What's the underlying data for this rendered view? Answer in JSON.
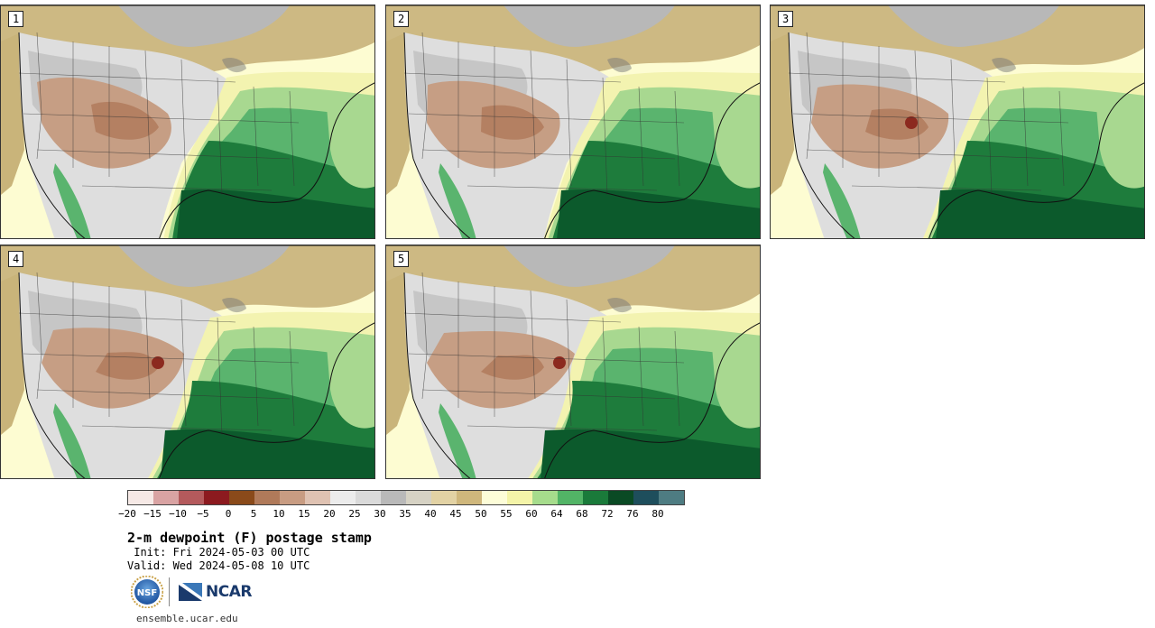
{
  "panels": [
    {
      "label": "1",
      "variant": 0
    },
    {
      "label": "2",
      "variant": 1
    },
    {
      "label": "3",
      "variant": 2
    },
    {
      "label": "4",
      "variant": 3
    },
    {
      "label": "5",
      "variant": 4
    }
  ],
  "colorbar": {
    "colors": [
      "#f6e9e6",
      "#d9a3a3",
      "#b45a5c",
      "#8c1a1f",
      "#8a4a1a",
      "#b07a5a",
      "#c89c82",
      "#dfc2b2",
      "#ececec",
      "#dadada",
      "#b9b9b9",
      "#d6d2c4",
      "#e2d2a4",
      "#cfb77c",
      "#fdfdd8",
      "#f4f4a8",
      "#a6dc8c",
      "#52b466",
      "#1a7a3a",
      "#0a4a24",
      "#1e4e5c",
      "#4e7c82"
    ],
    "tick_labels": [
      "−20",
      "−15",
      "−10",
      "−5",
      "0",
      "5",
      "10",
      "15",
      "20",
      "25",
      "30",
      "35",
      "40",
      "45",
      "50",
      "55",
      "60",
      "64",
      "68",
      "72",
      "76",
      "80"
    ]
  },
  "title": "2-m dewpoint (F) postage stamp",
  "init": " Init: Fri 2024-05-03 00 UTC",
  "valid": "Valid: Wed 2024-05-08 10 UTC",
  "logos": {
    "nsf": "NSF",
    "ncar": "NCAR"
  },
  "url": "ensemble.ucar.edu"
}
